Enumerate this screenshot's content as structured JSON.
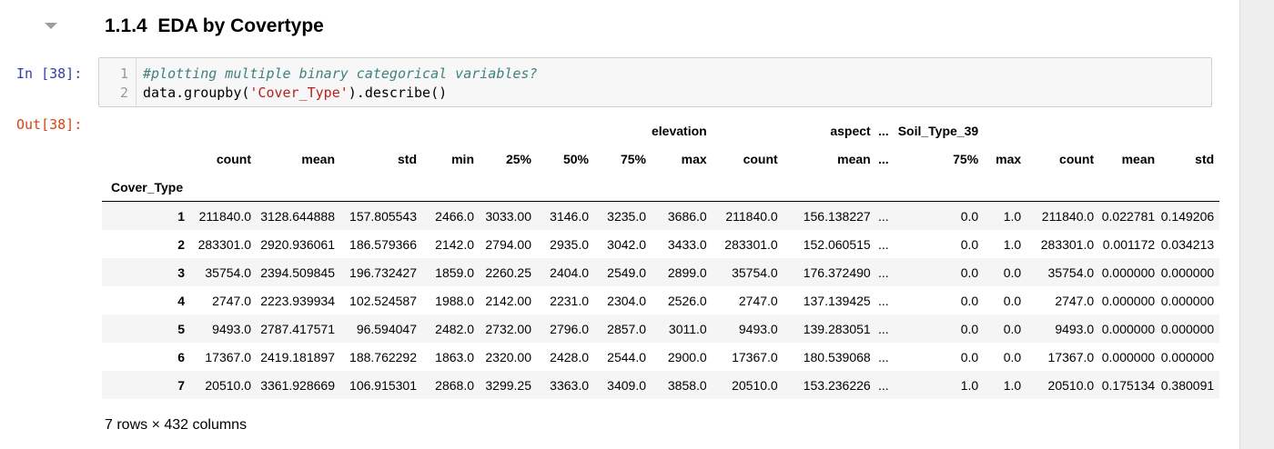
{
  "heading": {
    "number": "1.1.4",
    "title": "EDA by Covertype"
  },
  "input_cell": {
    "prompt": "In [38]:",
    "lines": [
      {
        "num": "1",
        "comment": "#plotting multiple binary categorical variables?"
      },
      {
        "num": "2",
        "pre": "data.groupby(",
        "string": "'Cover_Type'",
        "post": ").describe()"
      }
    ]
  },
  "output_cell": {
    "prompt": "Out[38]:"
  },
  "dataframe": {
    "top_headers": [
      "",
      "",
      "",
      "",
      "",
      "",
      "",
      "",
      "elevation",
      "",
      "aspect",
      "...",
      "Soil_Type_39",
      "",
      "",
      "",
      ""
    ],
    "sub_headers": [
      "",
      "count",
      "mean",
      "std",
      "min",
      "25%",
      "50%",
      "75%",
      "max",
      "count",
      "mean",
      "...",
      "75%",
      "max",
      "count",
      "mean",
      "std"
    ],
    "index_name": "Cover_Type",
    "rows": [
      [
        "1",
        "211840.0",
        "3128.644888",
        "157.805543",
        "2466.0",
        "3033.00",
        "3146.0",
        "3235.0",
        "3686.0",
        "211840.0",
        "156.138227",
        "...",
        "0.0",
        "1.0",
        "211840.0",
        "0.022781",
        "0.149206"
      ],
      [
        "2",
        "283301.0",
        "2920.936061",
        "186.579366",
        "2142.0",
        "2794.00",
        "2935.0",
        "3042.0",
        "3433.0",
        "283301.0",
        "152.060515",
        "...",
        "0.0",
        "1.0",
        "283301.0",
        "0.001172",
        "0.034213"
      ],
      [
        "3",
        "35754.0",
        "2394.509845",
        "196.732427",
        "1859.0",
        "2260.25",
        "2404.0",
        "2549.0",
        "2899.0",
        "35754.0",
        "176.372490",
        "...",
        "0.0",
        "0.0",
        "35754.0",
        "0.000000",
        "0.000000"
      ],
      [
        "4",
        "2747.0",
        "2223.939934",
        "102.524587",
        "1988.0",
        "2142.00",
        "2231.0",
        "2304.0",
        "2526.0",
        "2747.0",
        "137.139425",
        "...",
        "0.0",
        "0.0",
        "2747.0",
        "0.000000",
        "0.000000"
      ],
      [
        "5",
        "9493.0",
        "2787.417571",
        "96.594047",
        "2482.0",
        "2732.00",
        "2796.0",
        "2857.0",
        "3011.0",
        "9493.0",
        "139.283051",
        "...",
        "0.0",
        "0.0",
        "9493.0",
        "0.000000",
        "0.000000"
      ],
      [
        "6",
        "17367.0",
        "2419.181897",
        "188.762292",
        "1863.0",
        "2320.00",
        "2428.0",
        "2544.0",
        "2900.0",
        "17367.0",
        "180.539068",
        "...",
        "0.0",
        "0.0",
        "17367.0",
        "0.000000",
        "0.000000"
      ],
      [
        "7",
        "20510.0",
        "3361.928669",
        "106.915301",
        "2868.0",
        "3299.25",
        "3363.0",
        "3409.0",
        "3858.0",
        "20510.0",
        "153.236226",
        "...",
        "1.0",
        "1.0",
        "20510.0",
        "0.175134",
        "0.380091"
      ]
    ],
    "shape_text": "7 rows × 432 columns"
  },
  "icons": {
    "collapse": "chevron-down-icon"
  },
  "colors": {
    "in_prompt": "#303f9f",
    "out_prompt": "#d84315",
    "comment": "#408080",
    "string": "#ba2121"
  }
}
